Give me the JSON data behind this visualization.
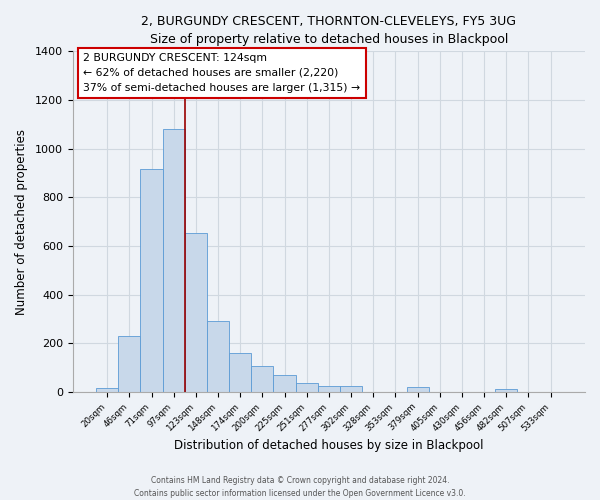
{
  "title": "2, BURGUNDY CRESCENT, THORNTON-CLEVELEYS, FY5 3UG",
  "subtitle": "Size of property relative to detached houses in Blackpool",
  "xlabel": "Distribution of detached houses by size in Blackpool",
  "ylabel": "Number of detached properties",
  "categories": [
    "20sqm",
    "46sqm",
    "71sqm",
    "97sqm",
    "123sqm",
    "148sqm",
    "174sqm",
    "200sqm",
    "225sqm",
    "251sqm",
    "277sqm",
    "302sqm",
    "328sqm",
    "353sqm",
    "379sqm",
    "405sqm",
    "430sqm",
    "456sqm",
    "482sqm",
    "507sqm",
    "533sqm"
  ],
  "values": [
    15,
    228,
    918,
    1080,
    655,
    293,
    158,
    108,
    70,
    38,
    25,
    22,
    0,
    0,
    18,
    0,
    0,
    0,
    12,
    0,
    0
  ],
  "bar_color": "#c8d8ea",
  "bar_edge_color": "#5b9bd5",
  "annotation_title": "2 BURGUNDY CRESCENT: 124sqm",
  "annotation_line1": "← 62% of detached houses are smaller (2,220)",
  "annotation_line2": "37% of semi-detached houses are larger (1,315) →",
  "annotation_box_facecolor": "#ffffff",
  "annotation_box_edgecolor": "#cc0000",
  "vline_color": "#990000",
  "vline_x": 3.5,
  "ylim": [
    0,
    1400
  ],
  "yticks": [
    0,
    200,
    400,
    600,
    800,
    1000,
    1200,
    1400
  ],
  "grid_color": "#d0d8e0",
  "footer1": "Contains HM Land Registry data © Crown copyright and database right 2024.",
  "footer2": "Contains public sector information licensed under the Open Government Licence v3.0.",
  "background_color": "#eef2f7",
  "plot_bg_color": "#eef2f7"
}
